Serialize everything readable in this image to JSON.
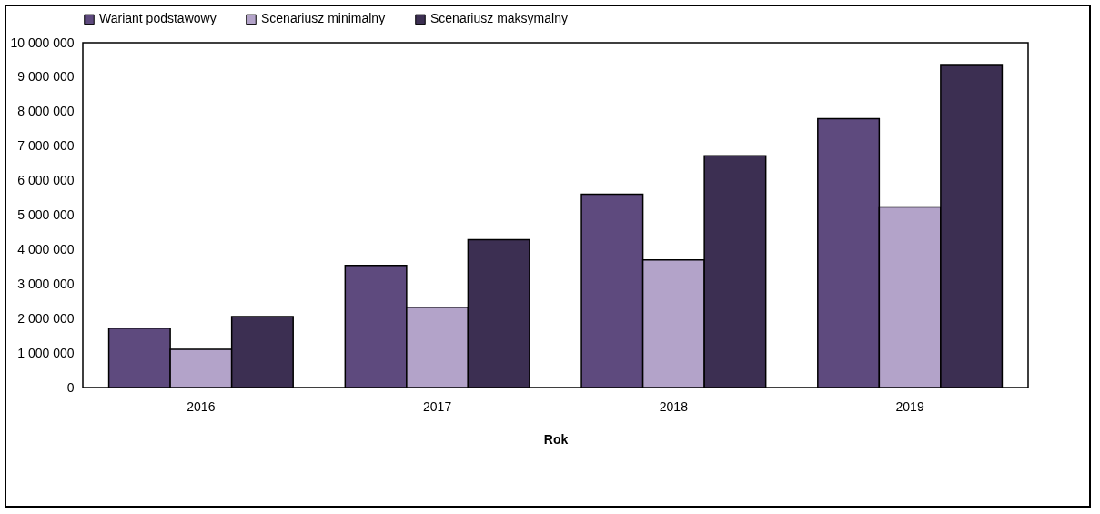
{
  "chart_data": {
    "type": "bar",
    "xlabel": "Rok",
    "categories": [
      "2016",
      "2017",
      "2018",
      "2019"
    ],
    "series": [
      {
        "name": "Wariant podstawowy",
        "color": "#5e4a7e",
        "values": [
          1720000,
          3540000,
          5610000,
          7800000
        ]
      },
      {
        "name": "Scenariusz minimalny",
        "color": "#b3a3c9",
        "values": [
          1110000,
          2330000,
          3700000,
          5240000
        ]
      },
      {
        "name": "Scenariusz maksymalny",
        "color": "#3c2f52",
        "values": [
          2060000,
          4290000,
          6720000,
          9370000
        ]
      }
    ],
    "ylim": [
      0,
      10000000
    ],
    "yticks": [
      0,
      {
        "value": 1000000,
        "label": "1 000 000"
      },
      {
        "value": 2000000,
        "label": "2 000 000"
      },
      {
        "value": 3000000,
        "label": "3 000 000"
      },
      {
        "value": 4000000,
        "label": "4 000 000"
      },
      {
        "value": 5000000,
        "label": "5 000 000"
      },
      {
        "value": 6000000,
        "label": "6 000 000"
      },
      {
        "value": 7000000,
        "label": "7 000 000"
      },
      {
        "value": 8000000,
        "label": "8 000 000"
      },
      {
        "value": 9000000,
        "label": "9 000 000"
      },
      {
        "value": 10000000,
        "label": "10 000 000"
      }
    ],
    "grid": false,
    "legend": "top"
  }
}
